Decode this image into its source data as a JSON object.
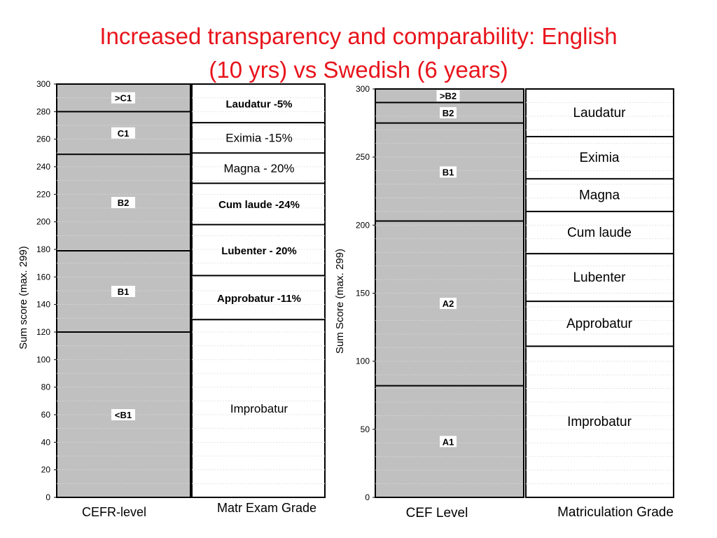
{
  "slide": {
    "title_line1": "Increased transparency and comparability: English",
    "title_line2": "(10 yrs) vs Swedish (6 years)"
  },
  "colors": {
    "title": "#e8141c",
    "cefr_fill": "#c0c0c0",
    "grade_fill": "#ffffff",
    "lines": "#000000"
  },
  "chart_data": [
    {
      "type": "bar",
      "ylabel": "Sum score (max. 299)",
      "ylim": [
        0,
        300
      ],
      "yticks": [
        0,
        20,
        40,
        60,
        80,
        100,
        120,
        140,
        160,
        180,
        200,
        220,
        240,
        260,
        280,
        300
      ],
      "categories": [
        "CEFR-level",
        "Matr Exam Grade"
      ],
      "cefr_bands": [
        {
          "label": "<B1",
          "from": 0,
          "to": 120
        },
        {
          "label": "B1",
          "from": 120,
          "to": 179
        },
        {
          "label": "B2",
          "from": 179,
          "to": 249
        },
        {
          "label": "C1",
          "from": 249,
          "to": 280
        },
        {
          "label": ">C1",
          "from": 280,
          "to": 300
        }
      ],
      "grade_bands": [
        {
          "label": "Improbatur",
          "from": 0,
          "to": 129,
          "bold": false
        },
        {
          "label": "Approbatur -11%",
          "from": 129,
          "to": 161,
          "bold": true
        },
        {
          "label": "Lubenter - 20%",
          "from": 161,
          "to": 198,
          "bold": true
        },
        {
          "label": "Cum laude -24%",
          "from": 198,
          "to": 228,
          "bold": true
        },
        {
          "label": "Magna - 20%",
          "from": 228,
          "to": 250,
          "bold": false
        },
        {
          "label": "Eximia -15%",
          "from": 250,
          "to": 272,
          "bold": false
        },
        {
          "label": "Laudatur -5%",
          "from": 272,
          "to": 300,
          "bold": true
        }
      ]
    },
    {
      "type": "bar",
      "ylabel": "Sum Score (max. 299)",
      "ylim": [
        0,
        300
      ],
      "yticks": [
        0,
        50,
        100,
        150,
        200,
        250,
        300
      ],
      "categories": [
        "CEF Level",
        "Matriculation Grade"
      ],
      "cefr_bands": [
        {
          "label": "A1",
          "from": 0,
          "to": 82
        },
        {
          "label": "A2",
          "from": 82,
          "to": 203
        },
        {
          "label": "B1",
          "from": 203,
          "to": 275
        },
        {
          "label": "B2",
          "from": 275,
          "to": 290
        },
        {
          "label": ">B2",
          "from": 290,
          "to": 300
        }
      ],
      "grade_bands": [
        {
          "label": "Improbatur",
          "from": 0,
          "to": 111,
          "bold": false
        },
        {
          "label": "Approbatur",
          "from": 111,
          "to": 144,
          "bold": false
        },
        {
          "label": "Lubenter",
          "from": 144,
          "to": 179,
          "bold": false
        },
        {
          "label": "Cum laude",
          "from": 179,
          "to": 210,
          "bold": false
        },
        {
          "label": "Magna",
          "from": 210,
          "to": 234,
          "bold": false
        },
        {
          "label": "Eximia",
          "from": 234,
          "to": 265,
          "bold": false
        },
        {
          "label": "Laudatur",
          "from": 265,
          "to": 300,
          "bold": false
        }
      ]
    }
  ]
}
